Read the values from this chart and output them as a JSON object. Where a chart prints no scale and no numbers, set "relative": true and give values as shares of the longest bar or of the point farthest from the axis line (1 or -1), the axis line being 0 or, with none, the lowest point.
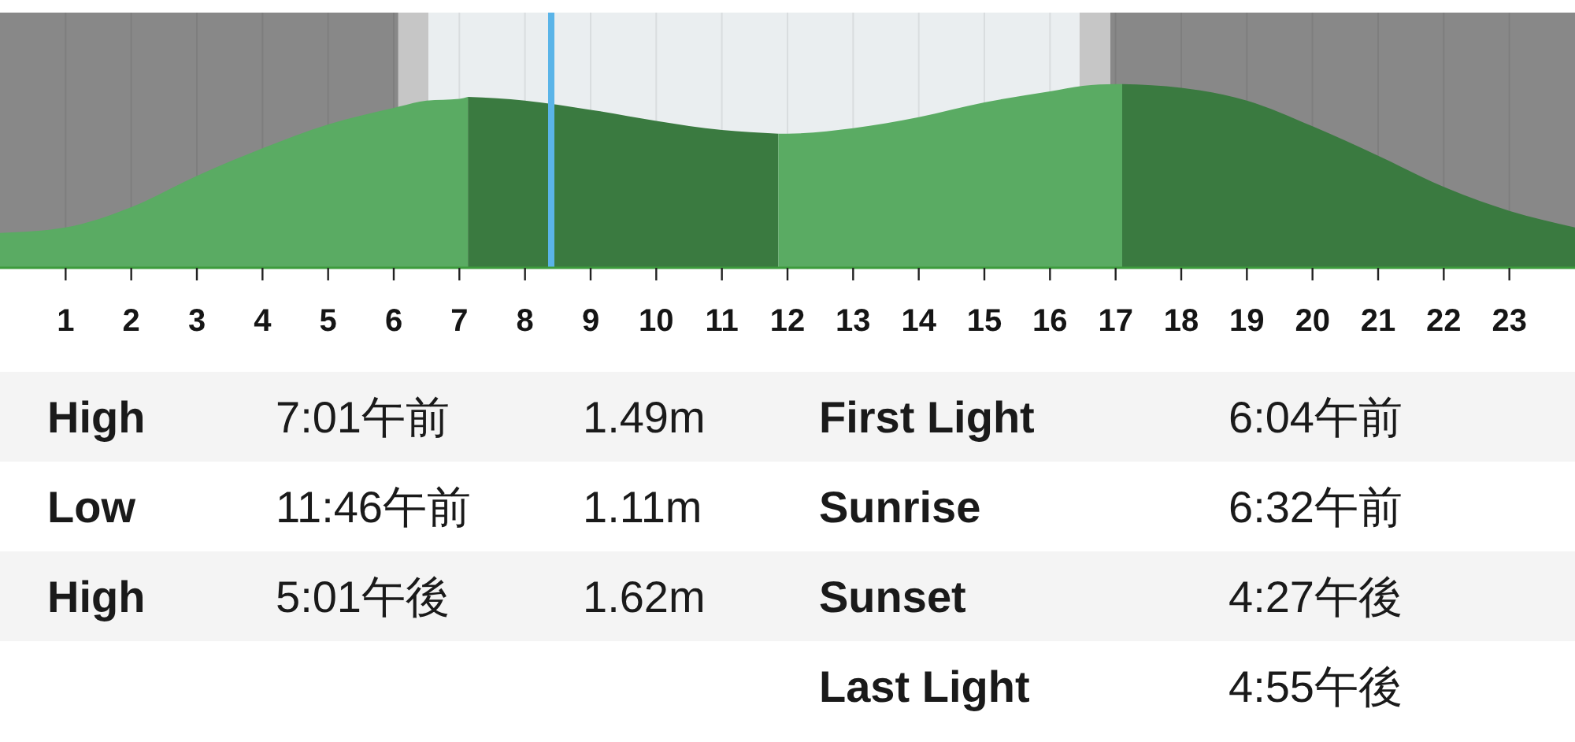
{
  "chart_data": {
    "type": "area",
    "relative": true,
    "xlim": [
      0,
      24
    ],
    "xticks": [
      1,
      2,
      3,
      4,
      5,
      6,
      7,
      8,
      9,
      10,
      11,
      12,
      13,
      14,
      15,
      16,
      17,
      18,
      19,
      20,
      21,
      22,
      23
    ],
    "grid": "x",
    "series": [
      {
        "color": "#5aab63",
        "x": [
          0,
          1,
          2,
          3,
          4,
          5,
          6,
          6.5,
          7,
          7.13
        ],
        "values": [
          0.19,
          0.22,
          0.33,
          0.5,
          0.65,
          0.78,
          0.87,
          0.91,
          0.92,
          0.93
        ]
      },
      {
        "color": "#3a7a40",
        "x": [
          7.13,
          8,
          9,
          10,
          11,
          11.86
        ],
        "values": [
          0.93,
          0.91,
          0.86,
          0.8,
          0.75,
          0.73
        ]
      },
      {
        "color": "#5aab63",
        "x": [
          11.86,
          12,
          13,
          14,
          15,
          16,
          16.5,
          17,
          17.1
        ],
        "values": [
          0.73,
          0.73,
          0.76,
          0.82,
          0.9,
          0.96,
          0.99,
          1.0,
          1.0
        ]
      },
      {
        "color": "#3a7a40",
        "x": [
          17.1,
          18,
          19,
          20,
          21,
          22,
          23,
          24
        ],
        "values": [
          1.0,
          0.98,
          0.91,
          0.77,
          0.61,
          0.44,
          0.31,
          0.22
        ]
      }
    ],
    "bands": [
      {
        "axis": "x",
        "from": 0,
        "to": 6.07,
        "color": "#888888"
      },
      {
        "axis": "x",
        "from": 6.07,
        "to": 6.53,
        "color": "#c6c6c6"
      },
      {
        "axis": "x",
        "from": 6.53,
        "to": 16.45,
        "color": "#eaeef0"
      },
      {
        "axis": "x",
        "from": 16.45,
        "to": 16.92,
        "color": "#c6c6c6"
      },
      {
        "axis": "x",
        "from": 16.92,
        "to": 24,
        "color": "#888888"
      }
    ],
    "ref_lines": [
      {
        "axis": "x",
        "value": 8.4,
        "color": "#5ab4e8"
      }
    ],
    "annotations": [
      "High",
      "7:01午前",
      "1.49m",
      "First Light",
      "6:04午前",
      "Low",
      "11:46午前",
      "1.11m",
      "Sunrise",
      "6:32午前",
      "High",
      "5:01午後",
      "1.62m",
      "Sunset",
      "4:27午後",
      "Last Light",
      "4:55午後"
    ]
  }
}
